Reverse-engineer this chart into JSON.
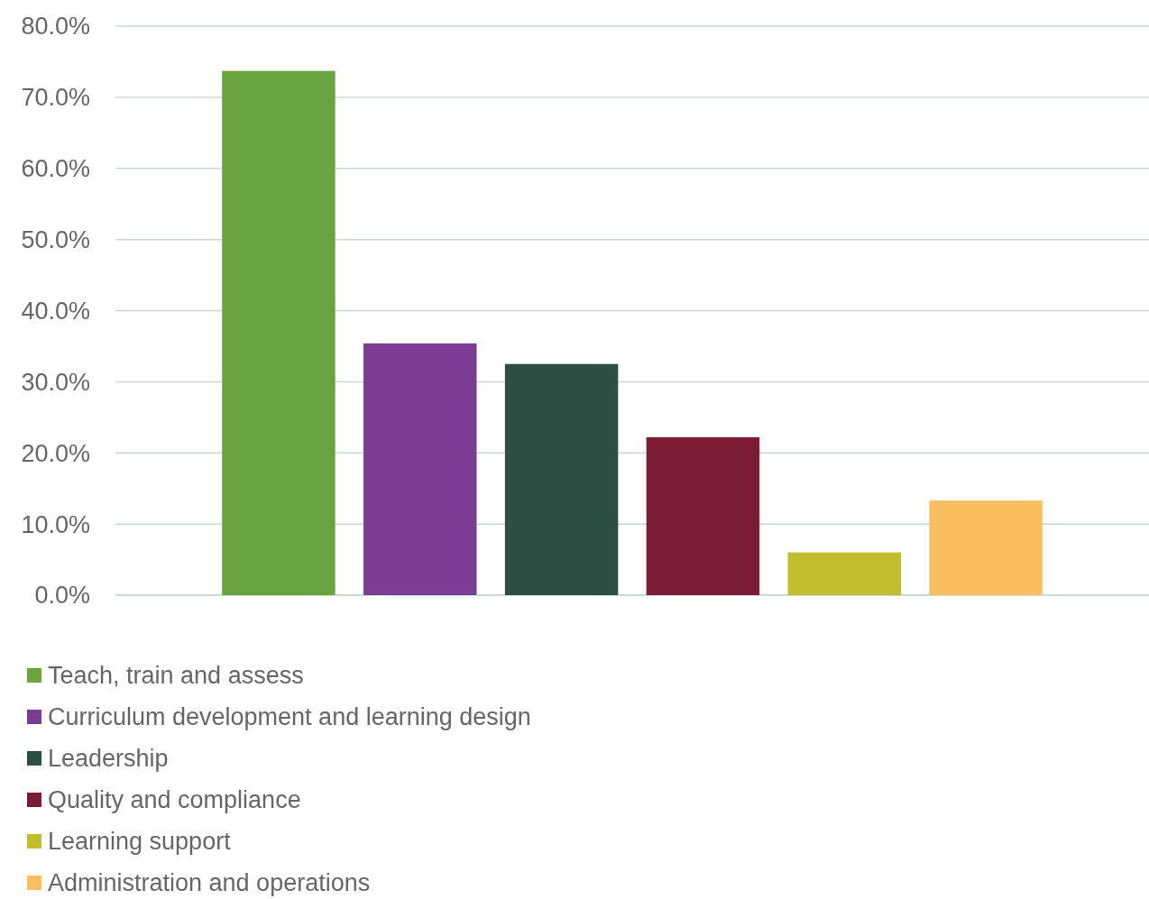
{
  "chart_data": {
    "type": "bar",
    "categories": [
      null
    ],
    "series": [
      {
        "name": "Teach, train and assess",
        "color": "#6aa43f",
        "values": [
          73.7
        ]
      },
      {
        "name": "Curriculum development and learning design",
        "color": "#7d3c94",
        "values": [
          35.4
        ]
      },
      {
        "name": "Leadership",
        "color": "#2d4f43",
        "values": [
          32.5
        ]
      },
      {
        "name": "Quality and compliance",
        "color": "#7b1c36",
        "values": [
          22.2
        ]
      },
      {
        "name": "Learning support",
        "color": "#c1bd2d",
        "values": [
          6.0
        ]
      },
      {
        "name": "Administration and operations",
        "color": "#f9bf60",
        "values": [
          13.3
        ]
      }
    ],
    "ylim": [
      0,
      80
    ],
    "yticks": [
      {
        "value": 0,
        "label": "0.0%"
      },
      {
        "value": 10,
        "label": "10.0%"
      },
      {
        "value": 20,
        "label": "20.0%"
      },
      {
        "value": 30,
        "label": "30.0%"
      },
      {
        "value": 40,
        "label": "40.0%"
      },
      {
        "value": 50,
        "label": "50.0%"
      },
      {
        "value": 60,
        "label": "60.0%"
      },
      {
        "value": 70,
        "label": "70.0%"
      },
      {
        "value": 80,
        "label": "80.0%"
      }
    ],
    "grid": "y",
    "legend": "bottom"
  }
}
